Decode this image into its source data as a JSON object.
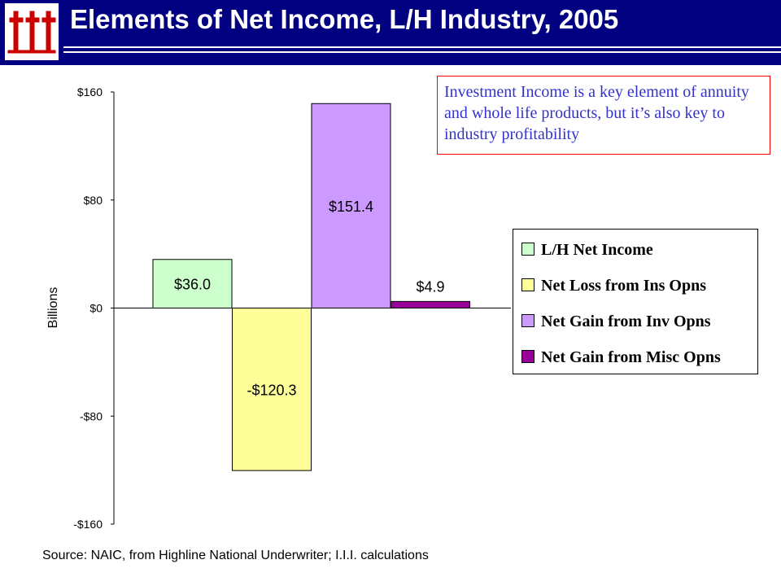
{
  "header": {
    "title": "Elements of Net Income, L/H Industry, 2005",
    "logo_icon": "iii-logo",
    "bg_color": "#000080",
    "logo_color": "#cc0000"
  },
  "callout": {
    "text": "Investment Income is a key element of annuity and whole life products, but it’s also key to industry profitability",
    "text_color": "#3333cc",
    "border_color": "#ff0000"
  },
  "source": "Source:  NAIC, from Highline National Underwriter; I.I.I. calculations",
  "chart_data": {
    "type": "bar",
    "title": "",
    "xlabel": "",
    "ylabel": "Billions",
    "ylim": [
      -160,
      160
    ],
    "yticks": [
      160,
      80,
      0,
      -80,
      -160
    ],
    "ytick_labels": [
      "$160",
      "$80",
      "$0",
      "-$80",
      "-$160"
    ],
    "grid": false,
    "legend_position": "right",
    "series": [
      {
        "name": "L/H Net Income",
        "value": 36.0,
        "label": "$36.0",
        "color": "#ccffcc"
      },
      {
        "name": "Net Loss from Ins Opns",
        "value": -120.3,
        "label": "-$120.3",
        "color": "#ffff99"
      },
      {
        "name": "Net Gain from Inv Opns",
        "value": 151.4,
        "label": "$151.4",
        "color": "#cc99ff"
      },
      {
        "name": "Net Gain from Misc Opns",
        "value": 4.9,
        "label": "$4.9",
        "color": "#990099"
      }
    ]
  }
}
